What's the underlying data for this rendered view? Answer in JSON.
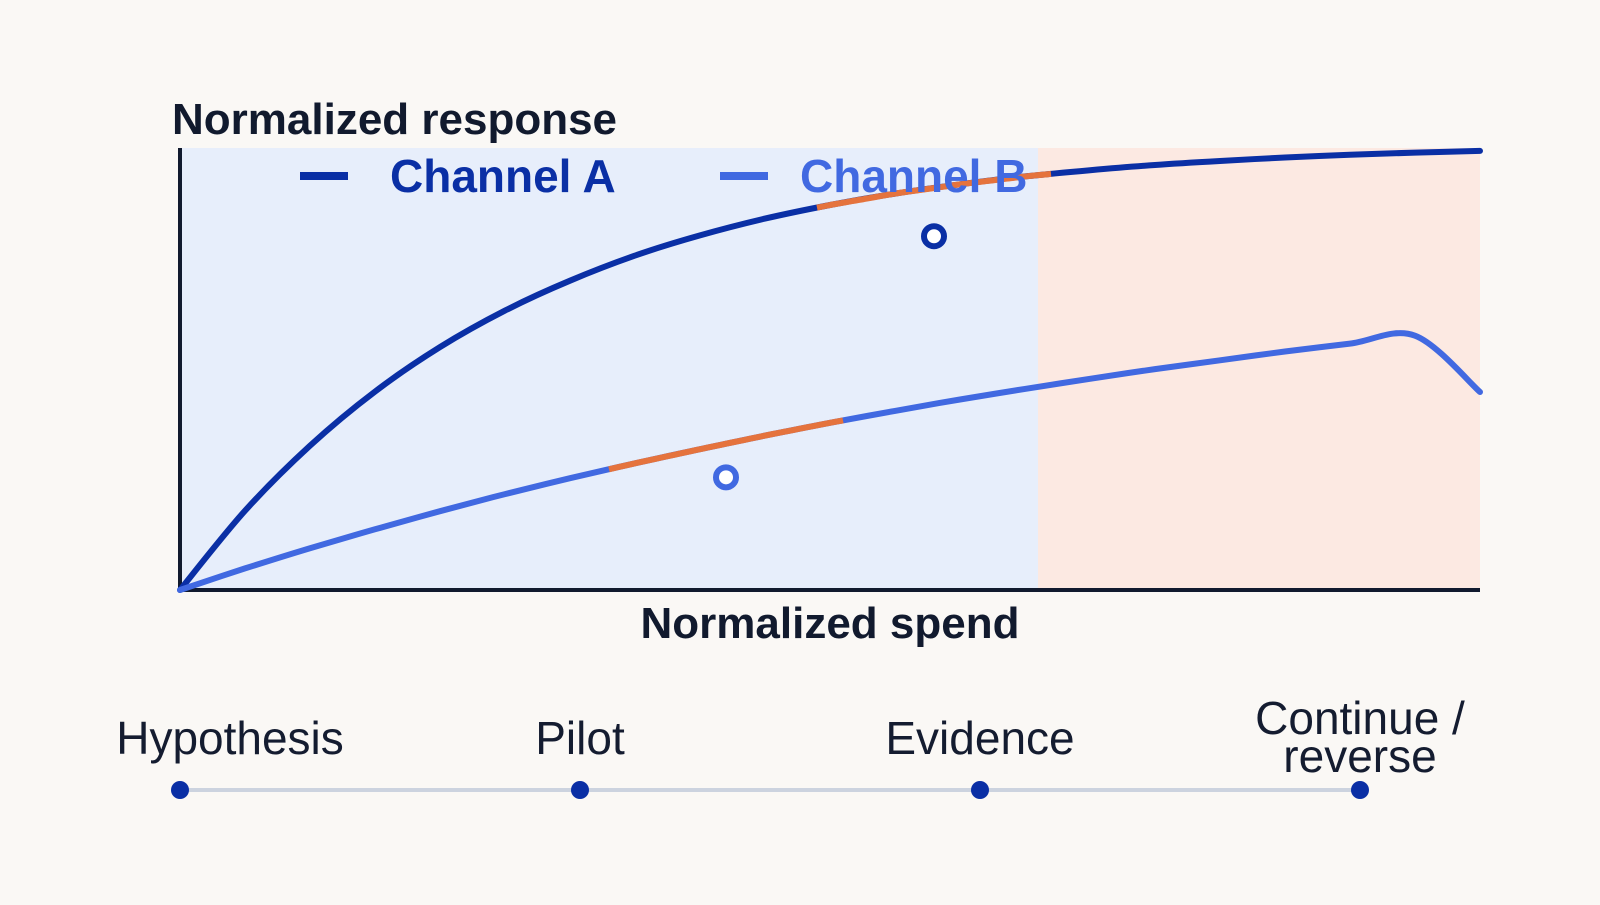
{
  "chart_data": {
    "type": "line",
    "title": "",
    "xlabel": "Normalized spend",
    "ylabel": "Normalized response",
    "xlim": [
      0,
      1
    ],
    "ylim": [
      0,
      1
    ],
    "grid": false,
    "legend_position": "top-left",
    "regions": [
      {
        "x_start": 0.0,
        "x_end": 0.66,
        "color": "#e7eefb"
      },
      {
        "x_start": 0.66,
        "x_end": 1.0,
        "color": "#fce9e2"
      }
    ],
    "highlight_color": "#e5733d",
    "series": [
      {
        "name": "Channel A",
        "color": "#0a2fa5",
        "x": [
          0.0,
          0.05,
          0.1,
          0.15,
          0.2,
          0.25,
          0.3,
          0.35,
          0.4,
          0.45,
          0.5,
          0.55,
          0.6,
          0.65,
          0.7,
          0.75,
          0.8,
          0.85,
          0.9,
          0.95,
          1.0
        ],
        "y": [
          0.0,
          0.18,
          0.328,
          0.451,
          0.552,
          0.635,
          0.703,
          0.76,
          0.806,
          0.844,
          0.875,
          0.901,
          0.922,
          0.94,
          0.954,
          0.966,
          0.975,
          0.983,
          0.989,
          0.994,
          0.998
        ],
        "marker": {
          "x": 0.58,
          "y": 0.804
        },
        "highlight": [
          0.49,
          0.67
        ]
      },
      {
        "name": "Channel B",
        "color": "#4169e1",
        "x": [
          0.0,
          0.05,
          0.1,
          0.15,
          0.2,
          0.25,
          0.3,
          0.35,
          0.4,
          0.45,
          0.5,
          0.55,
          0.6,
          0.65,
          0.7,
          0.75,
          0.8,
          0.85,
          0.9,
          0.95,
          1.0
        ],
        "y": [
          0.0,
          0.049,
          0.095,
          0.138,
          0.179,
          0.218,
          0.254,
          0.288,
          0.32,
          0.351,
          0.38,
          0.407,
          0.433,
          0.457,
          0.48,
          0.502,
          0.522,
          0.542,
          0.56,
          0.578,
          0.45
        ],
        "marker": {
          "x": 0.42,
          "y": 0.256
        },
        "highlight": [
          0.33,
          0.51
        ]
      }
    ]
  },
  "timeline": {
    "line_color": "#ccd3df",
    "dot_color": "#0a2fa5",
    "stages": [
      {
        "label": "Hypothesis"
      },
      {
        "label": "Pilot"
      },
      {
        "label": "Evidence"
      },
      {
        "label": "Continue /\nreverse"
      }
    ]
  }
}
